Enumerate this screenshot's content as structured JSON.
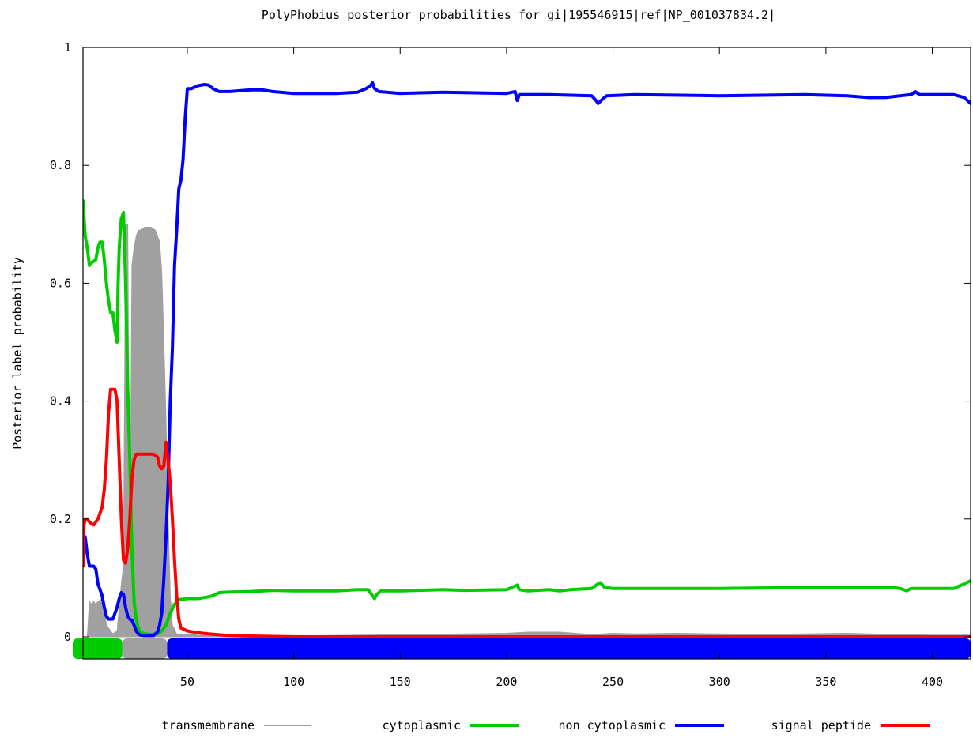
{
  "chart_data": {
    "type": "line",
    "title": "PolyPhobius posterior probabilities for gi|195546915|ref|NP_001037834.2|",
    "xlabel": "",
    "ylabel": "Posterior label probability",
    "xlim": [
      0,
      418
    ],
    "ylim": [
      -0.04,
      1
    ],
    "x_ticks": [
      50,
      100,
      150,
      200,
      250,
      300,
      350,
      400
    ],
    "y_ticks": [
      0,
      0.2,
      0.4,
      0.6,
      0.8,
      1
    ],
    "y_tick_labels": [
      "0",
      "0.2",
      "0.4",
      "0.6",
      "0.8",
      "1"
    ],
    "grid": false,
    "legend_position": "bottom",
    "series": [
      {
        "name": "transmembrane",
        "color": "#a0a0a0",
        "style": "filled-area",
        "points": [
          [
            1,
            0
          ],
          [
            3,
            0
          ],
          [
            4,
            0.06
          ],
          [
            5,
            0.055
          ],
          [
            6,
            0.06
          ],
          [
            7,
            0.055
          ],
          [
            8,
            0.06
          ],
          [
            10,
            0.065
          ],
          [
            11,
            0.05
          ],
          [
            12,
            0.02
          ],
          [
            14,
            0.01
          ],
          [
            15,
            0.005
          ],
          [
            17,
            0.01
          ],
          [
            19,
            0.09
          ],
          [
            20,
            0.12
          ],
          [
            21,
            0.7
          ],
          [
            22,
            0.7
          ],
          [
            23,
            0.1
          ],
          [
            24,
            0.63
          ],
          [
            25,
            0.66
          ],
          [
            26,
            0.68
          ],
          [
            27,
            0.69
          ],
          [
            28,
            0.69
          ],
          [
            30,
            0.695
          ],
          [
            33,
            0.695
          ],
          [
            35,
            0.69
          ],
          [
            37,
            0.67
          ],
          [
            38,
            0.62
          ],
          [
            39,
            0.5
          ],
          [
            40,
            0.37
          ],
          [
            41,
            0.2
          ],
          [
            42,
            0.07
          ],
          [
            43,
            0.02
          ],
          [
            45,
            0.005
          ],
          [
            55,
            0.003
          ],
          [
            110,
            0.002
          ],
          [
            180,
            0.005
          ],
          [
            200,
            0.006
          ],
          [
            210,
            0.008
          ],
          [
            225,
            0.008
          ],
          [
            240,
            0.004
          ],
          [
            250,
            0.006
          ],
          [
            260,
            0.005
          ],
          [
            280,
            0.006
          ],
          [
            300,
            0.005
          ],
          [
            320,
            0.004
          ],
          [
            360,
            0.006
          ],
          [
            370,
            0.005
          ],
          [
            400,
            0.003
          ],
          [
            418,
            0.003
          ]
        ]
      },
      {
        "name": "cytoplasmic",
        "color": "#00cc00",
        "style": "line",
        "points": [
          [
            1,
            0.74
          ],
          [
            2,
            0.68
          ],
          [
            3,
            0.66
          ],
          [
            4,
            0.63
          ],
          [
            5,
            0.635
          ],
          [
            7,
            0.64
          ],
          [
            8,
            0.66
          ],
          [
            9,
            0.67
          ],
          [
            10,
            0.67
          ],
          [
            11,
            0.64
          ],
          [
            12,
            0.6
          ],
          [
            13,
            0.57
          ],
          [
            14,
            0.55
          ],
          [
            15,
            0.55
          ],
          [
            16,
            0.52
          ],
          [
            17,
            0.5
          ],
          [
            17.5,
            0.6
          ],
          [
            18,
            0.66
          ],
          [
            19,
            0.71
          ],
          [
            20,
            0.72
          ],
          [
            20.5,
            0.66
          ],
          [
            21,
            0.6
          ],
          [
            22,
            0.42
          ],
          [
            23,
            0.3
          ],
          [
            24,
            0.15
          ],
          [
            25,
            0.06
          ],
          [
            26,
            0.03
          ],
          [
            27,
            0.015
          ],
          [
            28,
            0.008
          ],
          [
            30,
            0.005
          ],
          [
            33,
            0.004
          ],
          [
            36,
            0.005
          ],
          [
            38,
            0.01
          ],
          [
            40,
            0.02
          ],
          [
            42,
            0.04
          ],
          [
            44,
            0.055
          ],
          [
            46,
            0.063
          ],
          [
            50,
            0.065
          ],
          [
            55,
            0.065
          ],
          [
            60,
            0.068
          ],
          [
            62,
            0.07
          ],
          [
            65,
            0.075
          ],
          [
            70,
            0.076
          ],
          [
            80,
            0.077
          ],
          [
            90,
            0.079
          ],
          [
            100,
            0.078
          ],
          [
            120,
            0.078
          ],
          [
            130,
            0.08
          ],
          [
            135,
            0.08
          ],
          [
            137,
            0.07
          ],
          [
            138,
            0.065
          ],
          [
            139,
            0.072
          ],
          [
            141,
            0.078
          ],
          [
            150,
            0.078
          ],
          [
            170,
            0.08
          ],
          [
            180,
            0.079
          ],
          [
            200,
            0.08
          ],
          [
            205,
            0.088
          ],
          [
            206,
            0.08
          ],
          [
            210,
            0.078
          ],
          [
            220,
            0.08
          ],
          [
            225,
            0.078
          ],
          [
            230,
            0.08
          ],
          [
            240,
            0.082
          ],
          [
            243,
            0.09
          ],
          [
            244,
            0.092
          ],
          [
            246,
            0.084
          ],
          [
            250,
            0.082
          ],
          [
            300,
            0.082
          ],
          [
            320,
            0.083
          ],
          [
            360,
            0.084
          ],
          [
            380,
            0.084
          ],
          [
            385,
            0.082
          ],
          [
            388,
            0.078
          ],
          [
            390,
            0.082
          ],
          [
            400,
            0.082
          ],
          [
            410,
            0.082
          ],
          [
            415,
            0.09
          ],
          [
            418,
            0.095
          ]
        ]
      },
      {
        "name": "non cytoplasmic",
        "color": "#0000ff",
        "style": "line",
        "points": [
          [
            1,
            0.13
          ],
          [
            2,
            0.17
          ],
          [
            3,
            0.14
          ],
          [
            4,
            0.12
          ],
          [
            6,
            0.12
          ],
          [
            7,
            0.115
          ],
          [
            8,
            0.09
          ],
          [
            10,
            0.07
          ],
          [
            11,
            0.05
          ],
          [
            12,
            0.035
          ],
          [
            13,
            0.03
          ],
          [
            14,
            0.03
          ],
          [
            15,
            0.03
          ],
          [
            16,
            0.04
          ],
          [
            17,
            0.05
          ],
          [
            18,
            0.065
          ],
          [
            19,
            0.075
          ],
          [
            20,
            0.072
          ],
          [
            21,
            0.05
          ],
          [
            22,
            0.035
          ],
          [
            23,
            0.03
          ],
          [
            24,
            0.028
          ],
          [
            25,
            0.02
          ],
          [
            26,
            0.01
          ],
          [
            27,
            0.005
          ],
          [
            28,
            0.003
          ],
          [
            30,
            0.002
          ],
          [
            34,
            0.002
          ],
          [
            36,
            0.008
          ],
          [
            37,
            0.02
          ],
          [
            38,
            0.04
          ],
          [
            39,
            0.1
          ],
          [
            40,
            0.17
          ],
          [
            41,
            0.26
          ],
          [
            42,
            0.4
          ],
          [
            43,
            0.49
          ],
          [
            44,
            0.63
          ],
          [
            45,
            0.69
          ],
          [
            46,
            0.76
          ],
          [
            47,
            0.775
          ],
          [
            48,
            0.81
          ],
          [
            49,
            0.88
          ],
          [
            50,
            0.93
          ],
          [
            52,
            0.93
          ],
          [
            55,
            0.935
          ],
          [
            58,
            0.937
          ],
          [
            60,
            0.936
          ],
          [
            62,
            0.93
          ],
          [
            65,
            0.925
          ],
          [
            70,
            0.925
          ],
          [
            80,
            0.928
          ],
          [
            85,
            0.928
          ],
          [
            90,
            0.925
          ],
          [
            100,
            0.922
          ],
          [
            120,
            0.922
          ],
          [
            130,
            0.924
          ],
          [
            134,
            0.93
          ],
          [
            136,
            0.935
          ],
          [
            137,
            0.94
          ],
          [
            138,
            0.93
          ],
          [
            140,
            0.925
          ],
          [
            150,
            0.922
          ],
          [
            170,
            0.924
          ],
          [
            200,
            0.922
          ],
          [
            204,
            0.925
          ],
          [
            205,
            0.91
          ],
          [
            206,
            0.92
          ],
          [
            220,
            0.92
          ],
          [
            240,
            0.918
          ],
          [
            242,
            0.91
          ],
          [
            243,
            0.905
          ],
          [
            245,
            0.912
          ],
          [
            247,
            0.918
          ],
          [
            260,
            0.92
          ],
          [
            300,
            0.918
          ],
          [
            340,
            0.92
          ],
          [
            360,
            0.918
          ],
          [
            370,
            0.915
          ],
          [
            378,
            0.915
          ],
          [
            385,
            0.918
          ],
          [
            390,
            0.92
          ],
          [
            392,
            0.925
          ],
          [
            394,
            0.92
          ],
          [
            400,
            0.92
          ],
          [
            410,
            0.92
          ],
          [
            415,
            0.915
          ],
          [
            418,
            0.905
          ]
        ]
      },
      {
        "name": "signal peptide",
        "color": "#ff0000",
        "style": "line",
        "points": [
          [
            1,
            0.12
          ],
          [
            1.5,
            0.19
          ],
          [
            2,
            0.2
          ],
          [
            3,
            0.2
          ],
          [
            4,
            0.195
          ],
          [
            5,
            0.192
          ],
          [
            6,
            0.19
          ],
          [
            8,
            0.2
          ],
          [
            10,
            0.22
          ],
          [
            11,
            0.25
          ],
          [
            12,
            0.3
          ],
          [
            13,
            0.38
          ],
          [
            14,
            0.42
          ],
          [
            15,
            0.42
          ],
          [
            16,
            0.42
          ],
          [
            17,
            0.4
          ],
          [
            18,
            0.3
          ],
          [
            19,
            0.2
          ],
          [
            20,
            0.13
          ],
          [
            21,
            0.125
          ],
          [
            22,
            0.15
          ],
          [
            23,
            0.2
          ],
          [
            24,
            0.27
          ],
          [
            25,
            0.3
          ],
          [
            26,
            0.31
          ],
          [
            30,
            0.31
          ],
          [
            34,
            0.31
          ],
          [
            36,
            0.305
          ],
          [
            37,
            0.29
          ],
          [
            38,
            0.285
          ],
          [
            39,
            0.29
          ],
          [
            40,
            0.33
          ],
          [
            41,
            0.3
          ],
          [
            42,
            0.26
          ],
          [
            43,
            0.2
          ],
          [
            44,
            0.13
          ],
          [
            45,
            0.07
          ],
          [
            46,
            0.03
          ],
          [
            47,
            0.015
          ],
          [
            50,
            0.01
          ],
          [
            55,
            0.007
          ],
          [
            60,
            0.005
          ],
          [
            70,
            0.002
          ],
          [
            100,
            0
          ],
          [
            418,
            0
          ]
        ]
      }
    ],
    "annotation_bar": {
      "segments": [
        {
          "label": "cytoplasmic",
          "from": 1,
          "to": 19,
          "color": "#00cc00"
        },
        {
          "label": "transmembrane",
          "from": 20,
          "to": 40,
          "color": "#a0a0a0"
        },
        {
          "label": "non cytoplasmic",
          "from": 41,
          "to": 418,
          "color": "#0000ff"
        }
      ]
    }
  }
}
